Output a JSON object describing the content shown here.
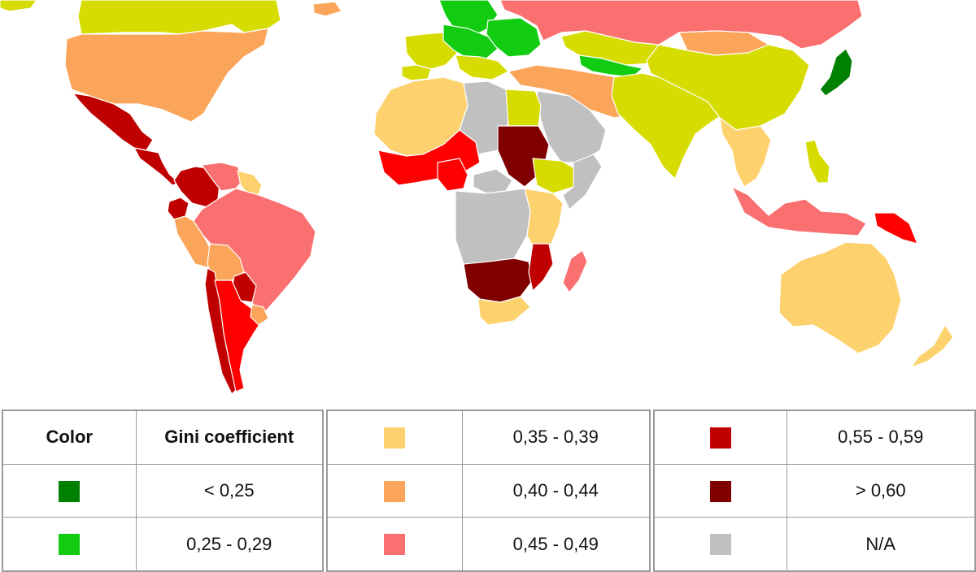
{
  "colors": {
    "band1": "#008000",
    "band2": "#11cc11",
    "band3": "#a6dc2e",
    "band4": "#d6dc00",
    "band5": "#fdd26e",
    "band6": "#fba55a",
    "band7": "#fa7070",
    "band8": "#ff0000",
    "band9": "#c00000",
    "band10": "#800000",
    "na": "#c0c0c0"
  },
  "map": {
    "regions": [
      {
        "name": "greenland",
        "color": "#d6dc00"
      },
      {
        "name": "canada",
        "color": "#d6dc00"
      },
      {
        "name": "united-states",
        "color": "#fba55a"
      },
      {
        "name": "mexico",
        "color": "#c00000"
      },
      {
        "name": "central-america",
        "color": "#c00000"
      },
      {
        "name": "colombia",
        "color": "#c00000"
      },
      {
        "name": "venezuela",
        "color": "#fa7070"
      },
      {
        "name": "guianas",
        "color": "#fdd26e"
      },
      {
        "name": "brazil",
        "color": "#c00000"
      },
      {
        "name": "ecuador",
        "color": "#fba55a"
      },
      {
        "name": "peru",
        "color": "#fa7070"
      },
      {
        "name": "bolivia",
        "color": "#fba55a"
      },
      {
        "name": "paraguay",
        "color": "#c00000"
      },
      {
        "name": "chile",
        "color": "#c00000"
      },
      {
        "name": "argentina",
        "color": "#ff0000"
      },
      {
        "name": "uruguay",
        "color": "#fba55a"
      },
      {
        "name": "iceland",
        "color": "#fba55a"
      },
      {
        "name": "scandinavia",
        "color": "#11cc11"
      },
      {
        "name": "western-europe",
        "color": "#d6dc00"
      },
      {
        "name": "iberia",
        "color": "#d6dc00"
      },
      {
        "name": "central-europe",
        "color": "#11cc11"
      },
      {
        "name": "eastern-europe",
        "color": "#11cc11"
      },
      {
        "name": "balkans",
        "color": "#d6dc00"
      },
      {
        "name": "russia",
        "color": "#fa7070"
      },
      {
        "name": "kazakhstan",
        "color": "#d6dc00"
      },
      {
        "name": "central-asia",
        "color": "#11cc11"
      },
      {
        "name": "middle-east",
        "color": "#fba55a"
      },
      {
        "name": "arabia",
        "color": "#c0c0c0"
      },
      {
        "name": "south-asia",
        "color": "#d6dc00"
      },
      {
        "name": "china",
        "color": "#fba55a"
      },
      {
        "name": "mongolia",
        "color": "#d6dc00"
      },
      {
        "name": "japan",
        "color": "#008000"
      },
      {
        "name": "southeast-asia",
        "color": "#fdd26e"
      },
      {
        "name": "indonesia",
        "color": "#d6dc00"
      },
      {
        "name": "philippines",
        "color": "#fa7070"
      },
      {
        "name": "papua-new-guinea",
        "color": "#ff0000"
      },
      {
        "name": "australia",
        "color": "#fdd26e"
      },
      {
        "name": "new-zealand",
        "color": "#fdd26e"
      },
      {
        "name": "north-africa",
        "color": "#fdd26e"
      },
      {
        "name": "libya",
        "color": "#c0c0c0"
      },
      {
        "name": "egypt",
        "color": "#d6dc00"
      },
      {
        "name": "west-africa",
        "color": "#ff0000"
      },
      {
        "name": "nigeria",
        "color": "#ff0000"
      },
      {
        "name": "central-african-republic",
        "color": "#800000"
      },
      {
        "name": "sudan",
        "color": "#c0c0c0"
      },
      {
        "name": "ethiopia",
        "color": "#d6dc00"
      },
      {
        "name": "horn-of-africa",
        "color": "#c0c0c0"
      },
      {
        "name": "central-africa",
        "color": "#c0c0c0"
      },
      {
        "name": "east-africa",
        "color": "#fdd26e"
      },
      {
        "name": "southern-africa",
        "color": "#800000"
      },
      {
        "name": "south-africa",
        "color": "#c00000"
      },
      {
        "name": "mozambique",
        "color": "#fdd26e"
      },
      {
        "name": "madagascar",
        "color": "#fa7070"
      }
    ]
  },
  "legend": {
    "header_color": "Color",
    "header_gini": "Gini coefficient",
    "rows": [
      {
        "color": "#008000",
        "range": "< 0,25"
      },
      {
        "color": "#11cc11",
        "range": "0,25 - 0,29"
      },
      {
        "color": "#fdd26e",
        "range": "0,35 - 0,39"
      },
      {
        "color": "#fba55a",
        "range": "0,40 - 0,44"
      },
      {
        "color": "#fa7070",
        "range": "0,45 - 0,49"
      },
      {
        "color": "#c00000",
        "range": "0,55 - 0,59"
      },
      {
        "color": "#800000",
        "range": "> 0,60"
      },
      {
        "color": "#c0c0c0",
        "range": "N/A"
      }
    ]
  }
}
